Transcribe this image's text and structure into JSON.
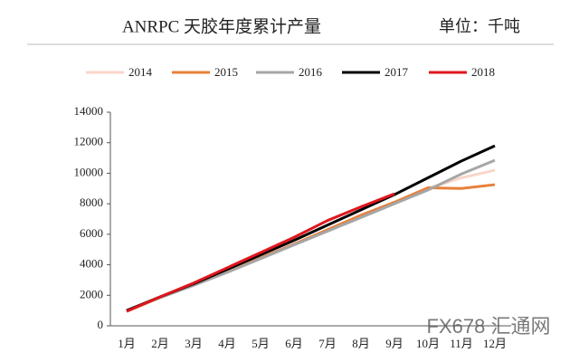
{
  "chart_data": {
    "type": "line",
    "title": "ANRPC 天胶年度累计产量",
    "unit": "单位：千吨",
    "watermark": "FX678 汇通网",
    "categories": [
      "1月",
      "2月",
      "3月",
      "4月",
      "5月",
      "6月",
      "7月",
      "8月",
      "9月",
      "10月",
      "11月",
      "12月"
    ],
    "series": [
      {
        "name": "2014",
        "color": "#f8d7c8",
        "values": [
          1000,
          1850,
          2700,
          3550,
          4450,
          5350,
          6250,
          7150,
          8050,
          9000,
          9700,
          10200
        ]
      },
      {
        "name": "2015",
        "color": "#e8803a",
        "values": [
          950,
          1850,
          2700,
          3550,
          4450,
          5350,
          6300,
          7250,
          8100,
          9050,
          9000,
          9250
        ]
      },
      {
        "name": "2016",
        "color": "#a6a6a6",
        "values": [
          1000,
          1850,
          2650,
          3500,
          4400,
          5300,
          6200,
          7100,
          8000,
          8900,
          9950,
          10850
        ]
      },
      {
        "name": "2017",
        "color": "#000000",
        "values": [
          1000,
          1900,
          2750,
          3700,
          4650,
          5600,
          6600,
          7600,
          8600,
          9700,
          10800,
          11800
        ]
      },
      {
        "name": "2018",
        "color": "#e0161e",
        "values": [
          950,
          1900,
          2800,
          3800,
          4800,
          5800,
          6900,
          7800,
          8650,
          null,
          null,
          null
        ]
      }
    ],
    "ylim": [
      0,
      14000
    ],
    "yticks": [
      0,
      2000,
      4000,
      6000,
      8000,
      10000,
      12000,
      14000
    ],
    "legend": "top"
  }
}
